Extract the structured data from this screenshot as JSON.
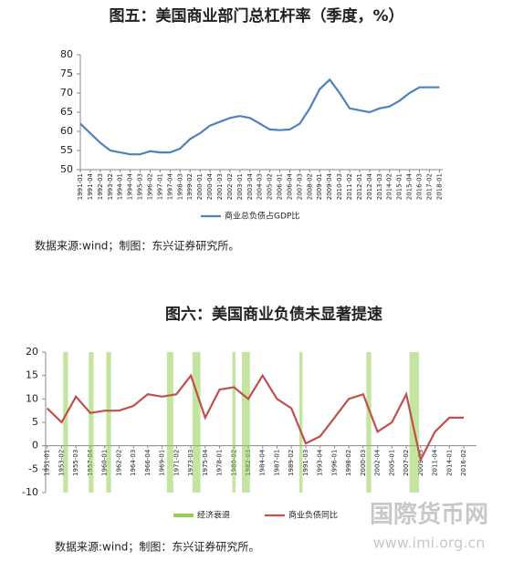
{
  "chart_data": [
    {
      "type": "line",
      "title": "图五：美国商业部门总杠杆率（季度，%）",
      "categories": [
        "1991-01",
        "1991-04",
        "1992-03",
        "1993-02",
        "1994-01",
        "1994-04",
        "1995-03",
        "1996-02",
        "1997-01",
        "1997-04",
        "1998-03",
        "1999-02",
        "2000-01",
        "2000-04",
        "2001-03",
        "2002-02",
        "2003-01",
        "2003-04",
        "2004-03",
        "2005-02",
        "2006-01",
        "2006-04",
        "2007-03",
        "2008-02",
        "2009-01",
        "2009-04",
        "2010-03",
        "2011-02",
        "2012-01",
        "2012-04",
        "2013-03",
        "2014-02",
        "2015-01",
        "2015-04",
        "2016-03",
        "2017-02",
        "2018-01"
      ],
      "series": [
        {
          "name": "商业总负债占GDP比",
          "color": "#4f81bd",
          "values": [
            62,
            59.5,
            57,
            55,
            54.5,
            54,
            54,
            54.8,
            54.5,
            54.5,
            55.5,
            58,
            59.5,
            61.5,
            62.5,
            63.5,
            64,
            63.5,
            62,
            60.5,
            60.3,
            60.5,
            62,
            66,
            71,
            73.5,
            70,
            66,
            65.5,
            65,
            66,
            66.5,
            68,
            70,
            71.5,
            71.5,
            71.5
          ]
        }
      ],
      "xlim": [
        "1991-01",
        "2018-02"
      ],
      "ylim": [
        50,
        80
      ],
      "yticks": [
        50,
        55,
        60,
        65,
        70,
        75,
        80
      ],
      "grid": false,
      "legend": "bottom",
      "note": "数据来源:wind；制图：东兴证券研究所。"
    },
    {
      "type": "line",
      "title": "图六：美国商业负债未显著提速",
      "categories": [
        "1951-01",
        "1953-02",
        "1955-03",
        "1957-04",
        "1960-01",
        "1962-02",
        "1964-03",
        "1966-04",
        "1969-01",
        "1971-02",
        "1973-03",
        "1975-04",
        "1978-01",
        "1980-02",
        "1982-03",
        "1984-04",
        "1987-01",
        "1989-02",
        "1991-03",
        "1993-04",
        "1996-01",
        "1998-02",
        "2000-03",
        "2002-04",
        "2005-01",
        "2007-02",
        "2009-03",
        "2011-04",
        "2014-01",
        "2016-02"
      ],
      "series": [
        {
          "name": "经济衰退",
          "color": "#92d050",
          "type": "band",
          "periods": [
            [
              "1953-03",
              "1954-02"
            ],
            [
              "1957-03",
              "1958-02"
            ],
            [
              "1960-02",
              "1961-01"
            ],
            [
              "1969-04",
              "1970-04"
            ],
            [
              "1973-04",
              "1975-01"
            ],
            [
              "1980-01",
              "1980-03"
            ],
            [
              "1981-03",
              "1982-04"
            ],
            [
              "1990-03",
              "1991-01"
            ],
            [
              "2001-01",
              "2001-04"
            ],
            [
              "2007-04",
              "2009-02"
            ]
          ]
        },
        {
          "name": "商业负债同比",
          "color": "#c0504d",
          "values": [
            8,
            5,
            10.5,
            7,
            7.5,
            7.5,
            8.5,
            11,
            10.5,
            11,
            15,
            6,
            12,
            12.5,
            10,
            15,
            10,
            8,
            0.5,
            2,
            6,
            10,
            11,
            3,
            5,
            11,
            -3,
            3,
            6,
            6
          ]
        }
      ],
      "xlim": [
        "1950-04",
        "2018-02"
      ],
      "ylim": [
        -10,
        20
      ],
      "yticks": [
        -10,
        -5,
        0,
        5,
        10,
        15,
        20
      ],
      "grid": false,
      "legend": "bottom",
      "note": "数据来源:wind；制图：东兴证券研究所。"
    }
  ],
  "watermark": {
    "text": "国際货币网",
    "url": "www.imi.org.cn"
  }
}
